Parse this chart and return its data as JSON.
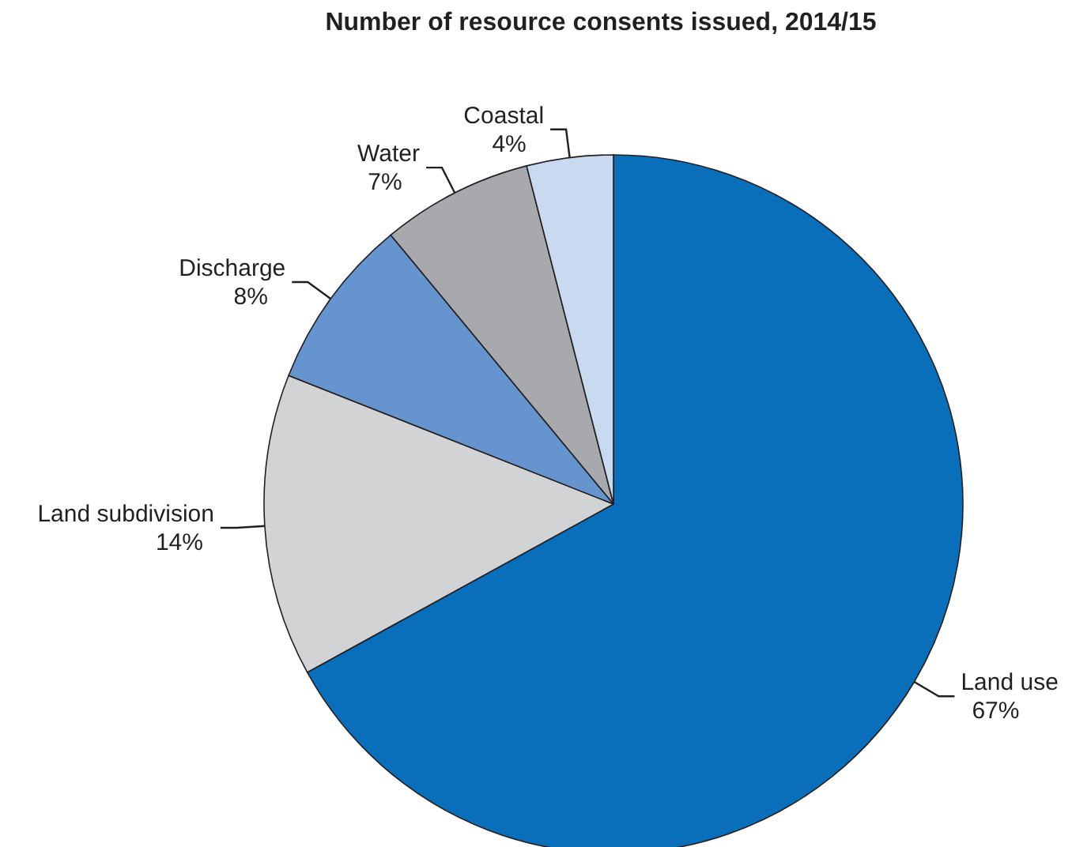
{
  "chart_data": {
    "type": "pie",
    "title": "Number of resource consents issued, 2014/15",
    "categories": [
      "Land use",
      "Land subdivision",
      "Discharge",
      "Water",
      "Coastal"
    ],
    "values": [
      67,
      14,
      8,
      7,
      4
    ],
    "value_labels": [
      "67%",
      "14%",
      "8%",
      "7%",
      "4%"
    ],
    "colors": [
      "#0a6fba",
      "#d1d3d4",
      "#6694cf",
      "#a7a9ac",
      "#c9d9f0"
    ]
  }
}
